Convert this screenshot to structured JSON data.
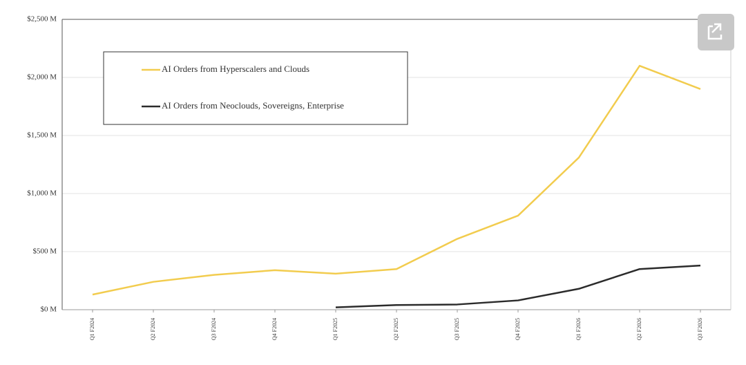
{
  "chart_data": {
    "type": "line",
    "categories": [
      "Q1 F2024",
      "Q2 F2024",
      "Q3 F2024",
      "Q4 F2024",
      "Q1 F2025",
      "Q2 F2025",
      "Q3 F2025",
      "Q4 F2025",
      "Q1 F2026",
      "Q2 F2026",
      "Q3 F2026"
    ],
    "series": [
      {
        "name": "AI Orders from Hyperscalers and Clouds",
        "color": "#f2cc4e",
        "values": [
          130,
          240,
          300,
          340,
          310,
          350,
          610,
          810,
          1310,
          2100,
          1900
        ]
      },
      {
        "name": "AI Orders from Neoclouds, Sovereigns, Enterprise",
        "color": "#2b2b2b",
        "values": [
          null,
          null,
          null,
          null,
          20,
          40,
          45,
          80,
          180,
          350,
          380
        ]
      }
    ],
    "ylim": [
      0,
      2500
    ],
    "yticks": [
      {
        "value": 0,
        "label": "$0 M"
      },
      {
        "value": 500,
        "label": "$500 M"
      },
      {
        "value": 1000,
        "label": "$1,000 M"
      },
      {
        "value": 1500,
        "label": "$1,500 M"
      },
      {
        "value": 2000,
        "label": "$2,000 M"
      },
      {
        "value": 2500,
        "label": "$2,500 M"
      }
    ],
    "grid": true
  }
}
